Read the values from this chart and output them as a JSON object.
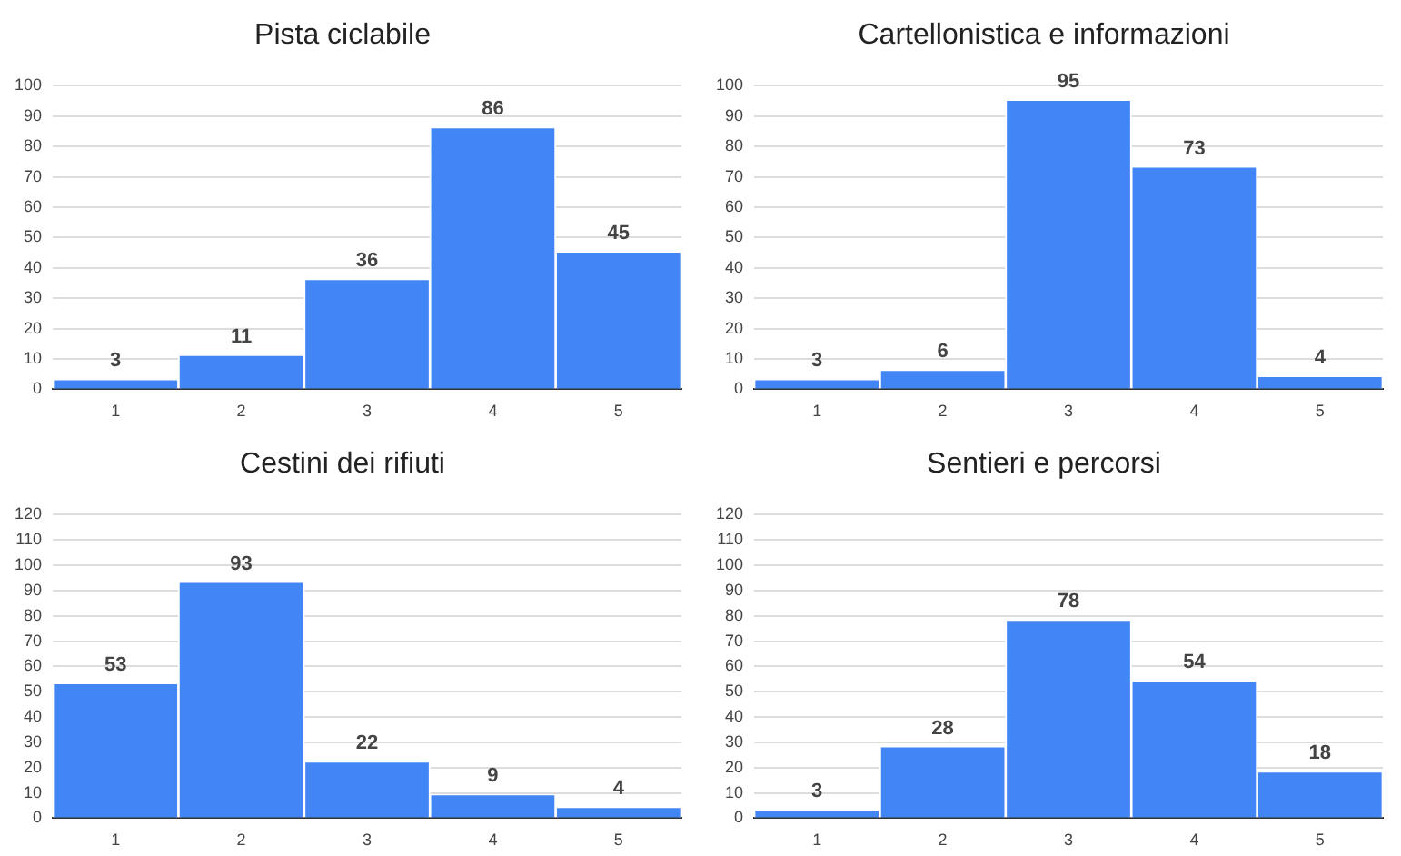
{
  "chart_data": [
    {
      "type": "bar",
      "title": "Pista ciclabile",
      "categories": [
        "1",
        "2",
        "3",
        "4",
        "5"
      ],
      "values": [
        3,
        11,
        36,
        86,
        45
      ],
      "color": "#4285f4",
      "ylim": [
        0,
        100
      ],
      "yticks": [
        0,
        10,
        20,
        30,
        40,
        50,
        60,
        70,
        80,
        90,
        100
      ],
      "grid": "y",
      "data_labels": true
    },
    {
      "type": "bar",
      "title": "Cartellonistica e informazioni",
      "categories": [
        "1",
        "2",
        "3",
        "4",
        "5"
      ],
      "values": [
        3,
        6,
        95,
        73,
        4
      ],
      "color": "#4285f4",
      "ylim": [
        0,
        100
      ],
      "yticks": [
        0,
        10,
        20,
        30,
        40,
        50,
        60,
        70,
        80,
        90,
        100
      ],
      "grid": "y",
      "data_labels": true
    },
    {
      "type": "bar",
      "title": "Cestini dei rifiuti",
      "categories": [
        "1",
        "2",
        "3",
        "4",
        "5"
      ],
      "values": [
        53,
        93,
        22,
        9,
        4
      ],
      "color": "#4285f4",
      "ylim": [
        0,
        120
      ],
      "yticks": [
        0,
        10,
        20,
        30,
        40,
        50,
        60,
        70,
        80,
        90,
        100,
        110,
        120
      ],
      "grid": "y",
      "data_labels": true
    },
    {
      "type": "bar",
      "title": "Sentieri e percorsi",
      "categories": [
        "1",
        "2",
        "3",
        "4",
        "5"
      ],
      "values": [
        3,
        28,
        78,
        54,
        18
      ],
      "color": "#4285f4",
      "ylim": [
        0,
        120
      ],
      "yticks": [
        0,
        10,
        20,
        30,
        40,
        50,
        60,
        70,
        80,
        90,
        100,
        110,
        120
      ],
      "grid": "y",
      "data_labels": true
    }
  ]
}
